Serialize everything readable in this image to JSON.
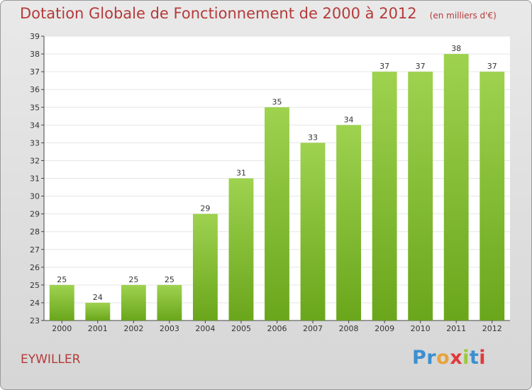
{
  "title": "Dotation Globale de Fonctionnement de 2000 à 2012",
  "subtitle": "(en milliers d'€)",
  "town": "EYWILLER",
  "logo": {
    "text": "Proxiti",
    "colors": [
      "#3b8fd0",
      "#3b8fd0",
      "#e8a33d",
      "#e03a3a",
      "#9acb3a",
      "#3b8fd0",
      "#e03a3a"
    ]
  },
  "colors": {
    "bar_top": "#9ed24f",
    "bar_bottom": "#6aa61c",
    "plot_bg": "#ffffff",
    "grid": "#e6e6e6",
    "title": "#b53a3a"
  },
  "chart_data": {
    "type": "bar",
    "categories": [
      "2000",
      "2001",
      "2002",
      "2003",
      "2004",
      "2005",
      "2006",
      "2007",
      "2008",
      "2009",
      "2010",
      "2011",
      "2012"
    ],
    "values": [
      25,
      24,
      25,
      25,
      29,
      31,
      35,
      33,
      34,
      37,
      37,
      38,
      37
    ],
    "ylim": [
      23,
      39
    ],
    "yticks": [
      23,
      24,
      25,
      26,
      27,
      28,
      29,
      30,
      31,
      32,
      33,
      34,
      35,
      36,
      37,
      38,
      39
    ],
    "grid": true,
    "data_labels": true
  }
}
